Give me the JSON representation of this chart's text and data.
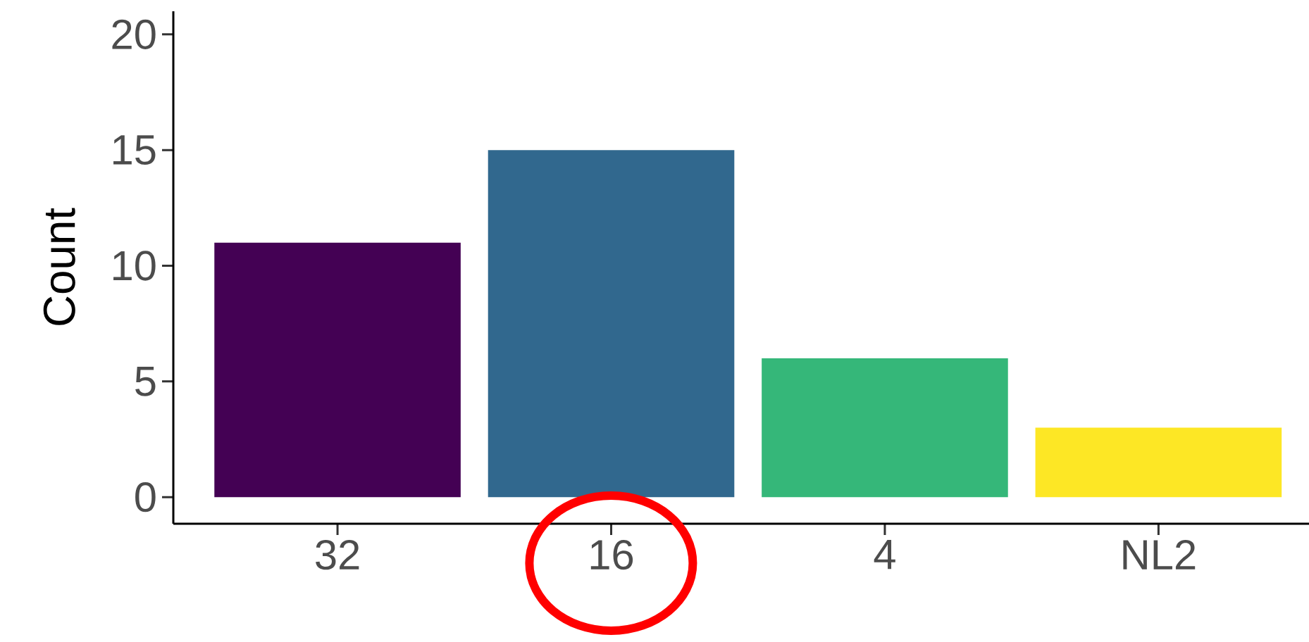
{
  "chart_data": {
    "type": "bar",
    "ylabel": "Count",
    "categories": [
      "32",
      "16",
      "4",
      "NL2"
    ],
    "values": [
      11,
      15,
      6,
      3
    ],
    "colors": [
      "#440154",
      "#31688e",
      "#35b779",
      "#fde725"
    ],
    "ylim": [
      -1.15,
      21
    ],
    "yticks": [
      0,
      5,
      10,
      15,
      20
    ]
  }
}
